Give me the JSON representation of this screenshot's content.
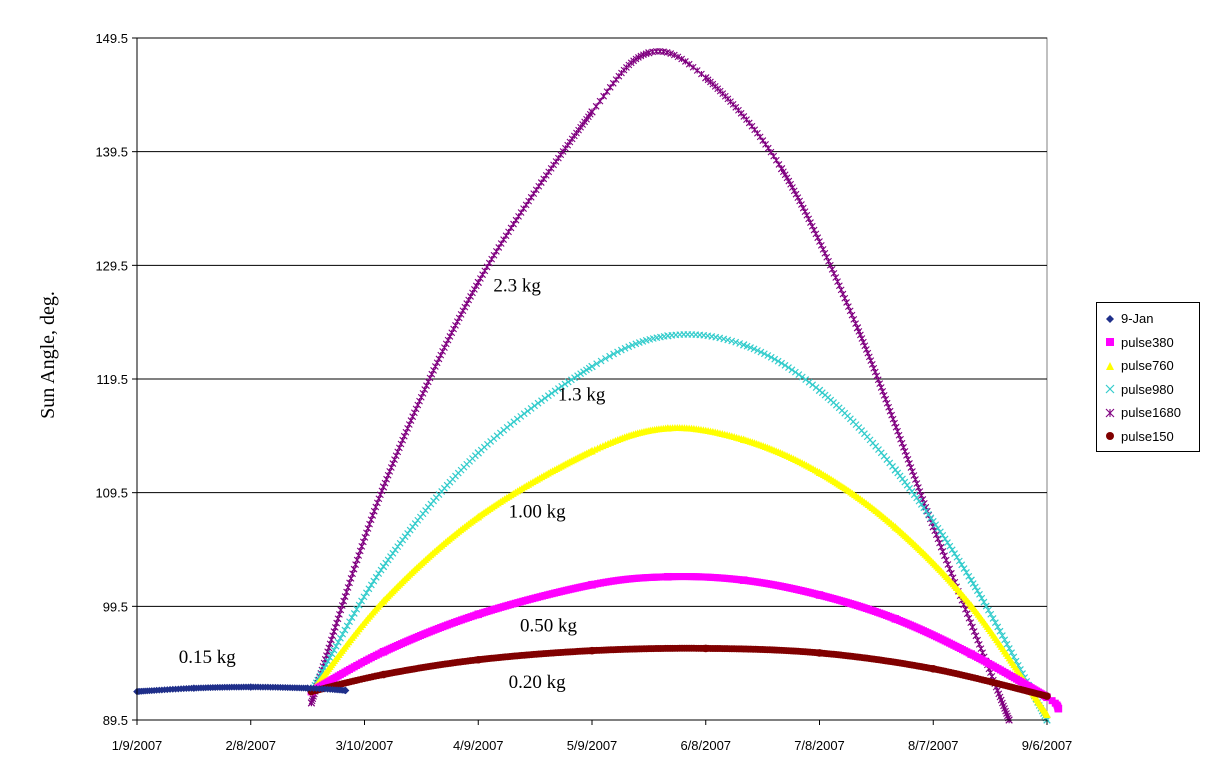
{
  "chart_data": {
    "type": "scatter",
    "title": "",
    "xlabel": "",
    "ylabel": "Sun Angle, deg.",
    "x_tick_labels": [
      "1/9/2007",
      "2/8/2007",
      "3/10/2007",
      "4/9/2007",
      "5/9/2007",
      "6/8/2007",
      "7/8/2007",
      "8/7/2007",
      "9/6/2007"
    ],
    "x_ticks": [
      "2007-01-09",
      "2007-02-08",
      "2007-03-10",
      "2007-04-09",
      "2007-05-09",
      "2007-06-08",
      "2007-07-08",
      "2007-08-07",
      "2007-09-06"
    ],
    "xlim": [
      "2007-01-09",
      "2007-09-06"
    ],
    "y_ticks": [
      "89.5",
      "99.5",
      "109.5",
      "119.5",
      "129.5",
      "139.5",
      "149.5"
    ],
    "ylim": [
      89.5,
      149.5
    ],
    "grid": "horizontal major gridlines",
    "legend_placement": "right",
    "series": [
      {
        "name": "9-Jan",
        "color": "#1f2f8a",
        "marker": "diamond",
        "points": [
          [
            "2007-01-09",
            92.0
          ],
          [
            "2007-01-24",
            92.3
          ],
          [
            "2007-02-08",
            92.4
          ],
          [
            "2007-02-23",
            92.3
          ],
          [
            "2007-03-05",
            92.1
          ]
        ]
      },
      {
        "name": "pulse380",
        "color": "#ff00ff",
        "marker": "square",
        "points": [
          [
            "2007-02-24",
            92.0
          ],
          [
            "2007-03-15",
            95.5
          ],
          [
            "2007-04-09",
            98.8
          ],
          [
            "2007-05-09",
            101.4
          ],
          [
            "2007-05-29",
            102.1
          ],
          [
            "2007-06-18",
            101.8
          ],
          [
            "2007-07-08",
            100.5
          ],
          [
            "2007-07-28",
            98.4
          ],
          [
            "2007-08-17",
            95.3
          ],
          [
            "2007-09-06",
            91.5
          ],
          [
            "2007-09-09",
            90.5
          ]
        ]
      },
      {
        "name": "pulse760",
        "color": "#ffff00",
        "marker": "triangle",
        "points": [
          [
            "2007-02-24",
            92.0
          ],
          [
            "2007-03-15",
            100.0
          ],
          [
            "2007-04-09",
            107.4
          ],
          [
            "2007-05-09",
            113.2
          ],
          [
            "2007-05-29",
            115.2
          ],
          [
            "2007-06-18",
            114.2
          ],
          [
            "2007-07-08",
            111.3
          ],
          [
            "2007-07-28",
            106.5
          ],
          [
            "2007-08-17",
            99.6
          ],
          [
            "2007-09-06",
            90.0
          ]
        ]
      },
      {
        "name": "pulse980",
        "color": "#33cccc",
        "marker": "x",
        "points": [
          [
            "2007-02-24",
            92.0
          ],
          [
            "2007-03-15",
            103.0
          ],
          [
            "2007-04-09",
            113.0
          ],
          [
            "2007-05-09",
            120.6
          ],
          [
            "2007-05-29",
            123.3
          ],
          [
            "2007-06-18",
            122.5
          ],
          [
            "2007-07-08",
            118.5
          ],
          [
            "2007-07-28",
            111.5
          ],
          [
            "2007-08-17",
            101.8
          ],
          [
            "2007-09-06",
            89.5
          ]
        ]
      },
      {
        "name": "pulse1680",
        "color": "#800080",
        "marker": "star",
        "points": [
          [
            "2007-02-24",
            91.0
          ],
          [
            "2007-03-15",
            110.0
          ],
          [
            "2007-04-09",
            128.0
          ],
          [
            "2007-05-09",
            143.0
          ],
          [
            "2007-05-24",
            148.2
          ],
          [
            "2007-06-08",
            146.0
          ],
          [
            "2007-06-28",
            138.0
          ],
          [
            "2007-07-18",
            124.0
          ],
          [
            "2007-08-07",
            106.5
          ],
          [
            "2007-08-27",
            89.5
          ]
        ]
      },
      {
        "name": "pulse150",
        "color": "#800000",
        "marker": "circle",
        "points": [
          [
            "2007-02-24",
            92.0
          ],
          [
            "2007-03-15",
            93.5
          ],
          [
            "2007-04-09",
            94.8
          ],
          [
            "2007-05-09",
            95.6
          ],
          [
            "2007-06-08",
            95.8
          ],
          [
            "2007-07-08",
            95.4
          ],
          [
            "2007-08-07",
            94.0
          ],
          [
            "2007-09-06",
            91.6
          ]
        ]
      }
    ],
    "annotations": [
      {
        "text": "0.15 kg",
        "x": "2007-01-20",
        "y": 94.5
      },
      {
        "text": "2.3 kg",
        "x": "2007-04-13",
        "y": 127.2
      },
      {
        "text": "1.3 kg",
        "x": "2007-04-30",
        "y": 117.6
      },
      {
        "text": "1.00 kg",
        "x": "2007-04-17",
        "y": 107.3
      },
      {
        "text": "0.50 kg",
        "x": "2007-04-20",
        "y": 97.3
      },
      {
        "text": "0.20 kg",
        "x": "2007-04-17",
        "y": 92.3
      }
    ]
  }
}
